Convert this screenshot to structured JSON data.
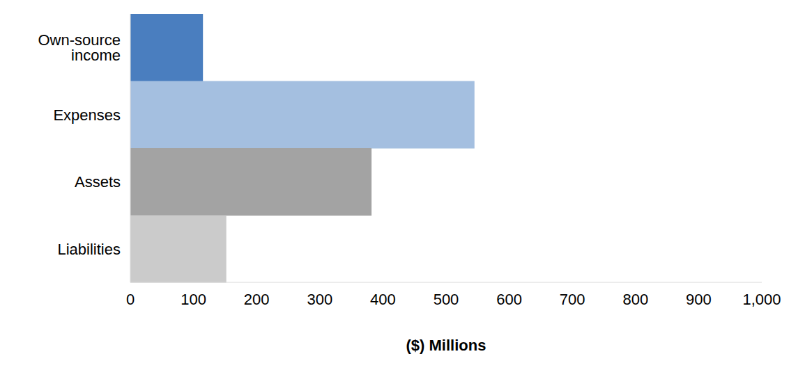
{
  "chart_data": {
    "type": "bar",
    "orientation": "horizontal",
    "categories": [
      "Own-source income",
      "Expenses",
      "Assets",
      "Liabilities"
    ],
    "values": [
      115,
      545,
      382,
      152
    ],
    "colors": [
      "#4a7ebf",
      "#a4bfe0",
      "#a3a3a3",
      "#cbcbcb"
    ],
    "x_label": "($) Millions",
    "xlim": [
      0,
      1000
    ],
    "xticks": [
      0,
      100,
      200,
      300,
      400,
      500,
      600,
      700,
      800,
      900,
      {
        "value": 1000,
        "label": "1,000"
      }
    ],
    "grid": false
  }
}
